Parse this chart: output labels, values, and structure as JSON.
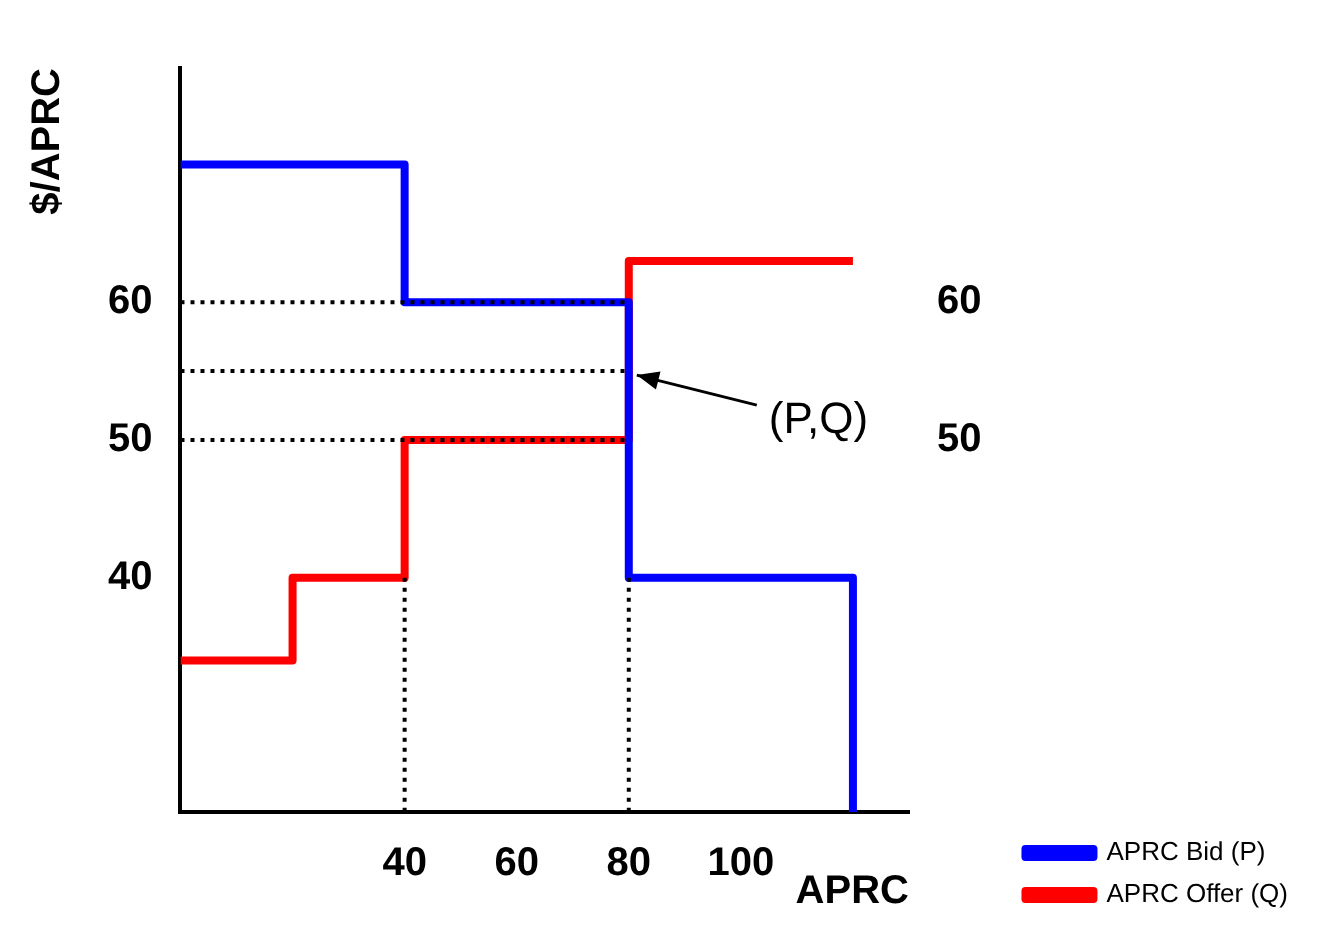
{
  "chart_data": {
    "type": "step",
    "xlabel": "APRC",
    "ylabel": "$/APRC",
    "xlim": [
      0,
      130
    ],
    "xticks": [
      40,
      60,
      80,
      100
    ],
    "ylim": [
      23,
      77
    ],
    "yticks": [
      40,
      50,
      60
    ],
    "y2lim": [
      23,
      77
    ],
    "y2ticks": [
      50,
      60
    ],
    "grid": false,
    "legend": "bottom right",
    "marker": "none",
    "annotations": [
      {
        "text": "(P,Q)",
        "x": 80,
        "y": 55
      }
    ],
    "series": [
      {
        "name": "APRC Bid (P)",
        "color": "#0000ff",
        "x": [
          0,
          40,
          80,
          120,
          120
        ],
        "values": [
          70,
          60,
          40,
          40,
          23
        ]
      },
      {
        "name": "APRC Offer (Q)",
        "color": "#ff0000",
        "x": [
          0,
          20,
          40,
          80,
          120
        ],
        "values": [
          34,
          40,
          50,
          63,
          63
        ]
      },
      {
        "type": "line",
        "color": "#000000",
        "line_style": "dotted",
        "x": [
          0,
          80
        ],
        "values": [
          60,
          60
        ]
      },
      {
        "type": "line",
        "color": "#000000",
        "line_style": "dotted",
        "x": [
          0,
          80
        ],
        "values": [
          55,
          55
        ]
      },
      {
        "type": "line",
        "color": "#000000",
        "line_style": "dotted",
        "x": [
          0,
          80
        ],
        "values": [
          50,
          50
        ]
      },
      {
        "type": "line",
        "color": "#000000",
        "line_style": "dotted",
        "x": [
          40,
          40
        ],
        "values": [
          40,
          23
        ]
      },
      {
        "type": "line",
        "color": "#000000",
        "line_style": "dotted",
        "x": [
          80,
          80
        ],
        "values": [
          40,
          23
        ]
      }
    ]
  }
}
